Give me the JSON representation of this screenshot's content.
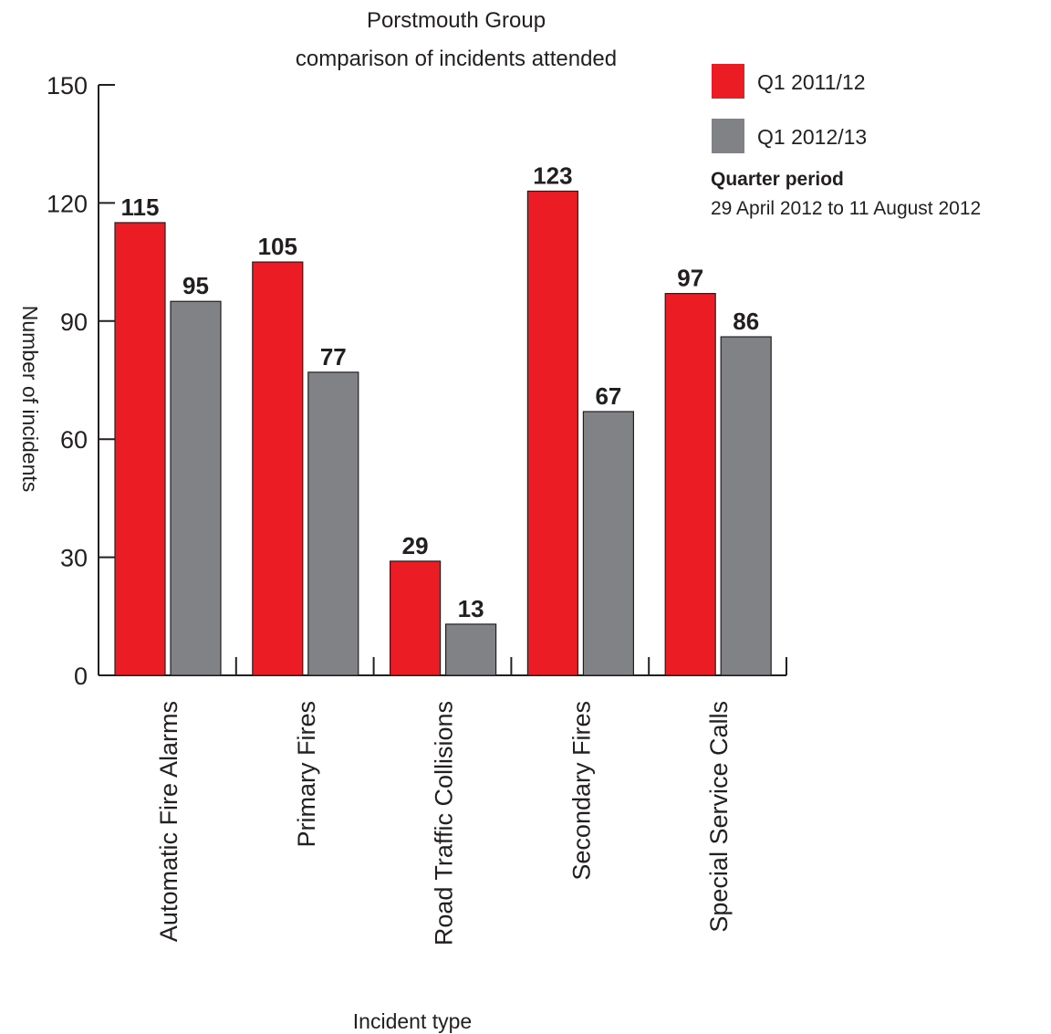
{
  "chart_data": {
    "type": "bar",
    "title_lines": [
      "Porstmouth Group",
      "comparison of incidents attended"
    ],
    "xlabel": "Incident type",
    "ylabel": "Number of incidents",
    "ylim": [
      0,
      150
    ],
    "yticks": [
      0,
      30,
      60,
      90,
      120,
      150
    ],
    "categories": [
      "Automatic Fire Alarms",
      "Primary Fires",
      "Road Traffic Collisions",
      "Secondary Fires",
      "Special Service Calls"
    ],
    "series": [
      {
        "name": "Q1 2011/12",
        "color": "#ec1c24",
        "values": [
          115,
          105,
          29,
          123,
          97
        ]
      },
      {
        "name": "Q1 2012/13",
        "color": "#808285",
        "values": [
          95,
          77,
          13,
          67,
          86
        ]
      }
    ],
    "legend_position": "top-right",
    "note": {
      "title": "Quarter period",
      "text": "29 April 2012 to 11 August 2012"
    },
    "grid": false
  }
}
